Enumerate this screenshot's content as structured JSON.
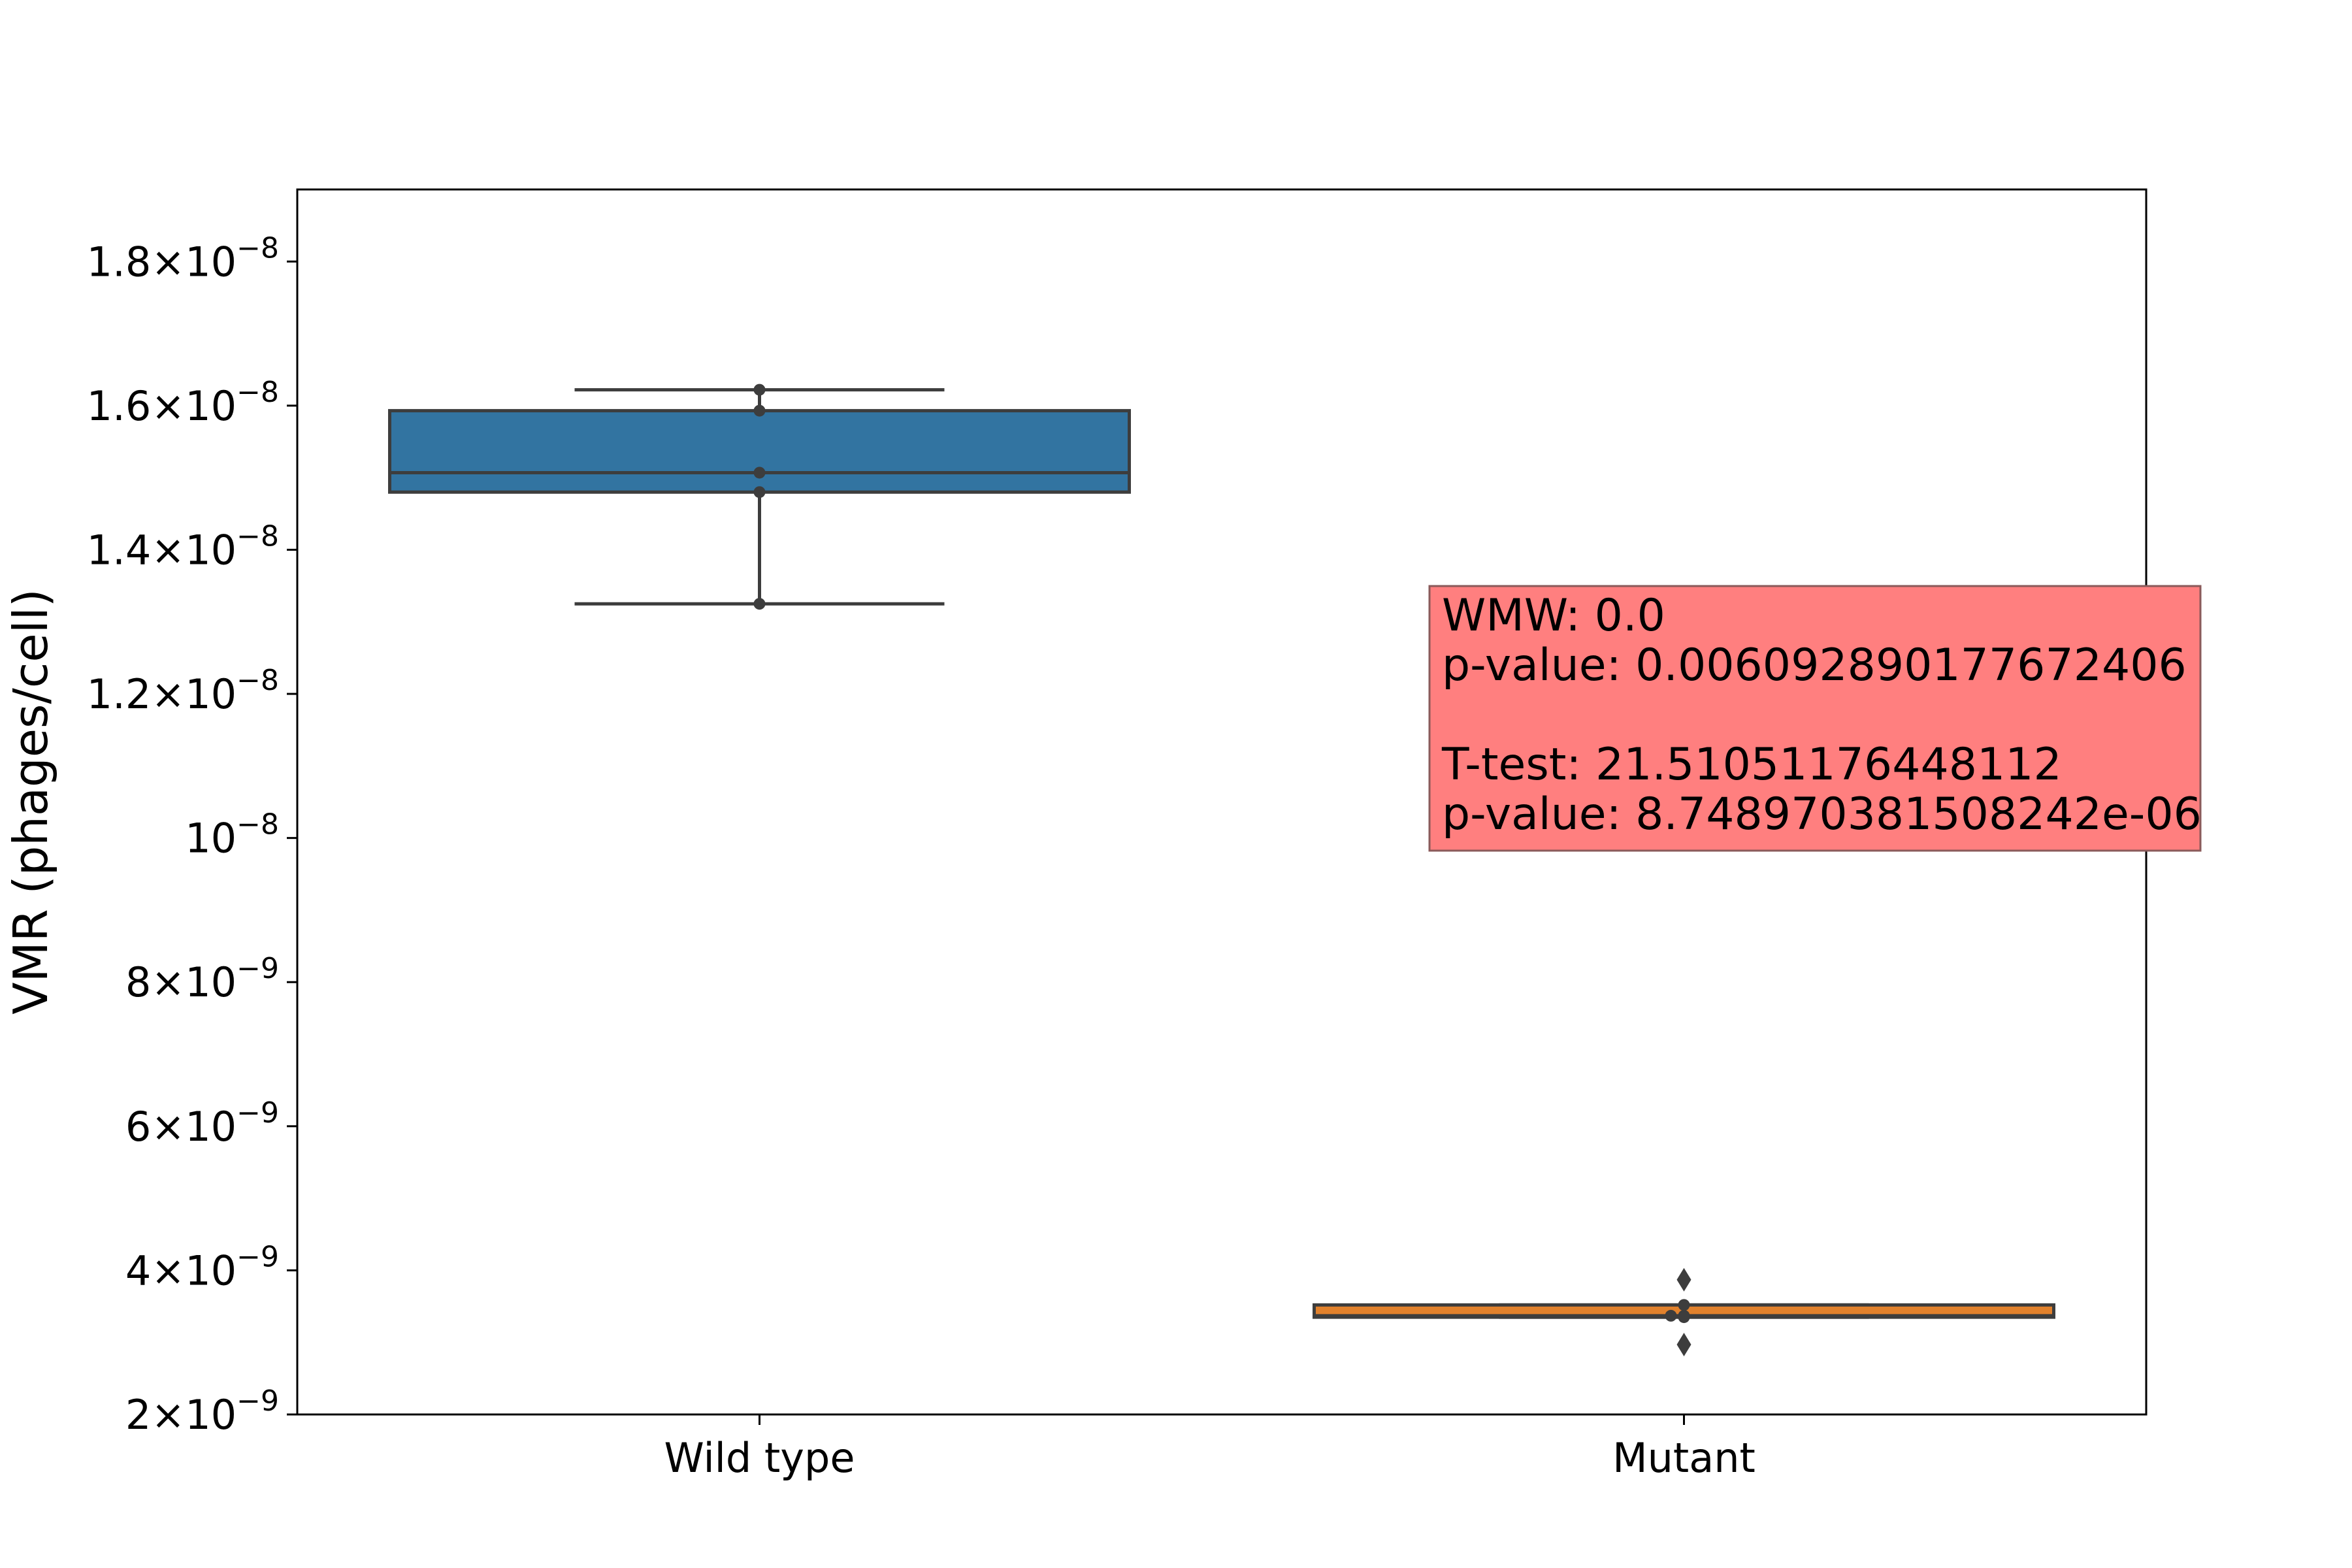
{
  "chart_data": {
    "type": "box",
    "ylabel": "VMR (phages/cell)",
    "ylim": [
      2e-09,
      1.9e-08
    ],
    "yticks": [
      {
        "value": 1.8e-08,
        "mantissa": "1.8×10",
        "exponent": "−8"
      },
      {
        "value": 1.6e-08,
        "mantissa": "1.6×10",
        "exponent": "−8"
      },
      {
        "value": 1.4e-08,
        "mantissa": "1.4×10",
        "exponent": "−8"
      },
      {
        "value": 1.2e-08,
        "mantissa": "1.2×10",
        "exponent": "−8"
      },
      {
        "value": 1e-08,
        "mantissa": "10",
        "exponent": "−8"
      },
      {
        "value": 8e-09,
        "mantissa": "8×10",
        "exponent": "−9"
      },
      {
        "value": 6e-09,
        "mantissa": "6×10",
        "exponent": "−9"
      },
      {
        "value": 4e-09,
        "mantissa": "4×10",
        "exponent": "−9"
      },
      {
        "value": 2e-09,
        "mantissa": "2×10",
        "exponent": "−9"
      }
    ],
    "categories": [
      "Wild type",
      "Mutant"
    ],
    "boxes": [
      {
        "category": "Wild type",
        "color": "#3274a1",
        "whisker_low": 1.325e-08,
        "q1": 1.48e-08,
        "median": 1.507e-08,
        "q3": 1.593e-08,
        "whisker_high": 1.622e-08,
        "points": [
          1.622e-08,
          1.593e-08,
          1.507e-08,
          1.48e-08,
          1.325e-08
        ],
        "outliers": []
      },
      {
        "category": "Mutant",
        "color": "#e1812c",
        "whisker_low": 3.35e-09,
        "q1": 3.35e-09,
        "median": 3.37e-09,
        "q3": 3.52e-09,
        "whisker_high": 3.52e-09,
        "points": [
          3.52e-09,
          3.37e-09,
          3.35e-09
        ],
        "outliers": [
          3.87e-09,
          2.97e-09
        ]
      }
    ],
    "annotation": {
      "lines": [
        "WMW: 0.0",
        "p-value: 0.006092890177672406",
        "",
        "T-test: 21.51051176448112",
        "p-value: 8.748970381508242e-06"
      ],
      "background": "#ff7f7f"
    }
  }
}
